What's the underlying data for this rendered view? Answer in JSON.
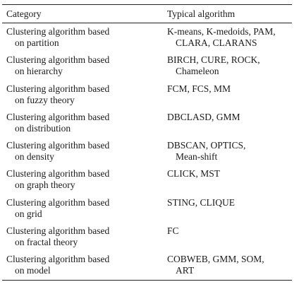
{
  "header": {
    "category": "Category",
    "algorithm": "Typical algorithm"
  },
  "rows": [
    {
      "cat1": "Clustering algorithm based",
      "cat2": "on partition",
      "alg1": "K-means, K-medoids, PAM,",
      "alg2": "CLARA, CLARANS"
    },
    {
      "cat1": "Clustering algorithm based",
      "cat2": "on hierarchy",
      "alg1": "BIRCH, CURE, ROCK,",
      "alg2": "Chameleon"
    },
    {
      "cat1": "Clustering algorithm based",
      "cat2": "on fuzzy theory",
      "alg1": "FCM, FCS, MM",
      "alg2": ""
    },
    {
      "cat1": "Clustering algorithm based",
      "cat2": "on distribution",
      "alg1": "DBCLASD, GMM",
      "alg2": ""
    },
    {
      "cat1": "Clustering algorithm based",
      "cat2": "on density",
      "alg1": "DBSCAN, OPTICS,",
      "alg2": "Mean-shift"
    },
    {
      "cat1": "Clustering algorithm based",
      "cat2": "on graph theory",
      "alg1": "CLICK, MST",
      "alg2": ""
    },
    {
      "cat1": "Clustering algorithm based",
      "cat2": "on grid",
      "alg1": "STING, CLIQUE",
      "alg2": ""
    },
    {
      "cat1": "Clustering algorithm based",
      "cat2": "on fractal theory",
      "alg1": "FC",
      "alg2": ""
    },
    {
      "cat1": "Clustering algorithm based",
      "cat2": "on model",
      "alg1": "COBWEB, GMM, SOM,",
      "alg2": "ART"
    }
  ]
}
